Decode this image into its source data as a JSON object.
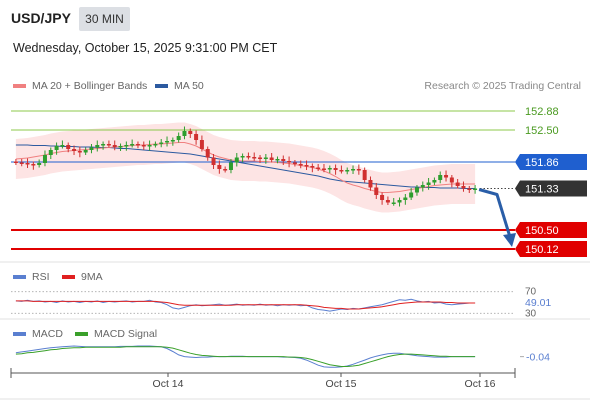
{
  "header": {
    "pair": "USD/JPY",
    "timeframe": "30 MIN",
    "datetime": "Wednesday, October 15, 2025 9:31:00 PM CET"
  },
  "legend": {
    "ma20": "MA 20 + Bollinger Bands",
    "ma50": "MA 50",
    "credit": "Research © 2025 Trading Central",
    "rsi": "RSI",
    "rsi_ma": "9MA",
    "macd": "MACD",
    "macd_signal": "MACD Signal"
  },
  "colors": {
    "ma20": "#f08080",
    "ma50": "#2c5aa0",
    "band_fill": "#fde4e4",
    "candle_up": "#2e9e2e",
    "candle_down": "#d03030",
    "green_level": "#8cc84b",
    "blue_level": "#1f5fcf",
    "red_level": "#e00000",
    "arrow": "#2a5ea8",
    "last_price": "#333333",
    "rsi": "#5a7fd0",
    "rsi_ma": "#e02020",
    "macd": "#5a7fd0",
    "macd_signal": "#3aa02a"
  },
  "chart_data": [
    {
      "type": "candlestick",
      "xlabel": "",
      "ylabel": "",
      "ylim": [
        149.9,
        153.1
      ],
      "x_tick_labels": [
        "Oct 14",
        "Oct 15",
        "Oct 16"
      ],
      "last_price": "151.33",
      "levels": [
        {
          "value": 152.88,
          "label": "152.88",
          "style": "green"
        },
        {
          "value": 152.5,
          "label": "152.50",
          "style": "green"
        },
        {
          "value": 151.86,
          "label": "151.86",
          "style": "blue"
        },
        {
          "value": 150.5,
          "label": "150.50",
          "style": "red"
        },
        {
          "value": 150.12,
          "label": "150.12",
          "style": "red"
        }
      ],
      "close": [
        151.85,
        151.84,
        151.82,
        151.8,
        151.84,
        152.0,
        152.1,
        152.18,
        152.2,
        152.12,
        152.08,
        152.05,
        152.1,
        152.15,
        152.2,
        152.22,
        152.2,
        152.16,
        152.18,
        152.2,
        152.22,
        152.2,
        152.18,
        152.2,
        152.22,
        152.25,
        152.28,
        152.3,
        152.38,
        152.48,
        152.42,
        152.3,
        152.12,
        151.95,
        151.8,
        151.72,
        151.7,
        151.85,
        151.95,
        151.98,
        151.96,
        151.95,
        151.92,
        151.95,
        151.9,
        151.92,
        151.88,
        151.85,
        151.82,
        151.8,
        151.78,
        151.75,
        151.73,
        151.72,
        151.74,
        151.7,
        151.68,
        151.7,
        151.72,
        151.7,
        151.5,
        151.35,
        151.2,
        151.1,
        151.05,
        151.05,
        151.1,
        151.15,
        151.25,
        151.35,
        151.4,
        151.45,
        151.5,
        151.6,
        151.55,
        151.45,
        151.38,
        151.33,
        151.32,
        151.33
      ],
      "ma20": [
        151.92,
        151.93,
        151.94,
        151.96,
        151.98,
        152.0,
        152.03,
        152.05,
        152.07,
        152.08,
        152.09,
        152.1,
        152.11,
        152.12,
        152.13,
        152.14,
        152.15,
        152.16,
        152.17,
        152.18,
        152.19,
        152.2,
        152.2,
        152.21,
        152.22,
        152.22,
        152.23,
        152.24,
        152.25,
        152.25,
        152.22,
        152.18,
        152.12,
        152.06,
        152.0,
        151.96,
        151.93,
        151.9,
        151.89,
        151.88,
        151.88,
        151.88,
        151.87,
        151.87,
        151.86,
        151.85,
        151.84,
        151.83,
        151.81,
        151.79,
        151.77,
        151.75,
        151.72,
        151.68,
        151.63,
        151.57,
        151.5,
        151.44,
        151.4,
        151.37,
        151.33,
        151.3,
        151.27,
        151.25,
        151.25,
        151.26,
        151.27,
        151.29,
        151.31,
        151.33,
        151.35,
        151.37,
        151.39,
        151.4,
        151.41,
        151.42,
        151.42,
        151.42,
        151.42,
        151.42
      ],
      "ma50": [
        152.2,
        152.2,
        152.2,
        152.19,
        152.19,
        152.19,
        152.18,
        152.18,
        152.17,
        152.17,
        152.17,
        152.16,
        152.16,
        152.16,
        152.15,
        152.15,
        152.15,
        152.14,
        152.13,
        152.13,
        152.12,
        152.11,
        152.1,
        152.09,
        152.08,
        152.07,
        152.06,
        152.05,
        152.04,
        152.03,
        152.02,
        152.0,
        151.98,
        151.96,
        151.94,
        151.92,
        151.9,
        151.88,
        151.86,
        151.84,
        151.82,
        151.8,
        151.78,
        151.76,
        151.74,
        151.72,
        151.7,
        151.68,
        151.66,
        151.64,
        151.62,
        151.6,
        151.58,
        151.55,
        151.52,
        151.5,
        151.48,
        151.47,
        151.46,
        151.45,
        151.44,
        151.43,
        151.42,
        151.41,
        151.4,
        151.39,
        151.38,
        151.37,
        151.36,
        151.36,
        151.35,
        151.35,
        151.35,
        151.34,
        151.34,
        151.34,
        151.34,
        151.33,
        151.33,
        151.33
      ],
      "band_width": 0.4
    },
    {
      "type": "line",
      "name": "RSI",
      "ylim": [
        25,
        75
      ],
      "reference_levels": [
        "70",
        "30"
      ],
      "value_label": "49.01",
      "rsi": [
        53,
        52,
        54,
        52,
        53,
        51,
        52,
        50,
        53,
        51,
        52,
        50,
        52,
        51,
        53,
        50,
        52,
        51,
        52,
        53,
        51,
        52,
        52,
        54,
        51,
        50,
        46,
        40,
        38,
        41,
        44,
        46,
        44,
        45,
        46,
        47,
        45,
        46,
        47,
        45,
        46,
        45,
        47,
        45,
        46,
        44,
        46,
        45,
        46,
        44,
        45,
        40,
        37,
        36,
        34,
        36,
        38,
        37,
        39,
        38,
        40,
        42,
        44,
        46,
        49,
        52,
        55,
        54,
        56,
        53,
        51,
        52,
        49,
        50,
        47,
        46,
        47,
        48,
        49,
        49
      ],
      "rsi_ma": [
        53,
        53,
        53,
        52,
        52,
        52,
        52,
        52,
        52,
        52,
        52,
        52,
        52,
        52,
        52,
        52,
        52,
        52,
        52,
        52,
        52,
        52,
        52,
        52,
        52,
        51,
        50,
        48,
        46,
        45,
        45,
        45,
        45,
        45,
        45,
        45,
        45,
        45,
        46,
        46,
        46,
        46,
        46,
        46,
        46,
        46,
        46,
        46,
        46,
        46,
        45,
        44,
        43,
        41,
        40,
        39,
        39,
        38,
        38,
        38,
        39,
        40,
        41,
        42,
        44,
        46,
        48,
        49,
        50,
        51,
        51,
        51,
        51,
        51,
        50,
        50,
        49,
        49,
        49,
        49
      ]
    },
    {
      "type": "line",
      "name": "MACD",
      "ylim": [
        -0.4,
        0.35
      ],
      "value_label": "-0.04",
      "macd": [
        0.05,
        0.07,
        0.09,
        0.11,
        0.13,
        0.15,
        0.17,
        0.18,
        0.19,
        0.2,
        0.21,
        0.2,
        0.19,
        0.19,
        0.19,
        0.19,
        0.19,
        0.19,
        0.2,
        0.2,
        0.2,
        0.21,
        0.21,
        0.21,
        0.2,
        0.19,
        0.15,
        0.08,
        0.0,
        -0.04,
        -0.05,
        -0.06,
        -0.05,
        -0.05,
        -0.04,
        -0.04,
        -0.04,
        -0.03,
        -0.03,
        -0.03,
        -0.04,
        -0.04,
        -0.04,
        -0.04,
        -0.04,
        -0.04,
        -0.05,
        -0.05,
        -0.06,
        -0.08,
        -0.12,
        -0.18,
        -0.24,
        -0.28,
        -0.29,
        -0.29,
        -0.28,
        -0.26,
        -0.22,
        -0.17,
        -0.12,
        -0.07,
        -0.03,
        0.0,
        0.03,
        0.04,
        0.04,
        0.02,
        0.0,
        -0.02,
        -0.03,
        -0.04,
        -0.05,
        -0.05,
        -0.05,
        -0.04,
        -0.04,
        -0.04,
        -0.04,
        -0.04
      ],
      "signal": [
        0.02,
        0.03,
        0.05,
        0.06,
        0.08,
        0.1,
        0.12,
        0.13,
        0.15,
        0.16,
        0.17,
        0.17,
        0.18,
        0.18,
        0.18,
        0.18,
        0.18,
        0.18,
        0.18,
        0.19,
        0.19,
        0.19,
        0.19,
        0.19,
        0.19,
        0.19,
        0.18,
        0.16,
        0.12,
        0.08,
        0.04,
        0.01,
        -0.01,
        -0.02,
        -0.03,
        -0.04,
        -0.04,
        -0.04,
        -0.04,
        -0.04,
        -0.04,
        -0.04,
        -0.04,
        -0.04,
        -0.04,
        -0.04,
        -0.04,
        -0.05,
        -0.05,
        -0.06,
        -0.08,
        -0.11,
        -0.15,
        -0.19,
        -0.23,
        -0.25,
        -0.27,
        -0.27,
        -0.26,
        -0.24,
        -0.2,
        -0.16,
        -0.12,
        -0.08,
        -0.04,
        -0.01,
        0.01,
        0.02,
        0.02,
        0.01,
        0.0,
        -0.01,
        -0.02,
        -0.03,
        -0.03,
        -0.04,
        -0.04,
        -0.04,
        -0.04,
        -0.04
      ]
    }
  ]
}
